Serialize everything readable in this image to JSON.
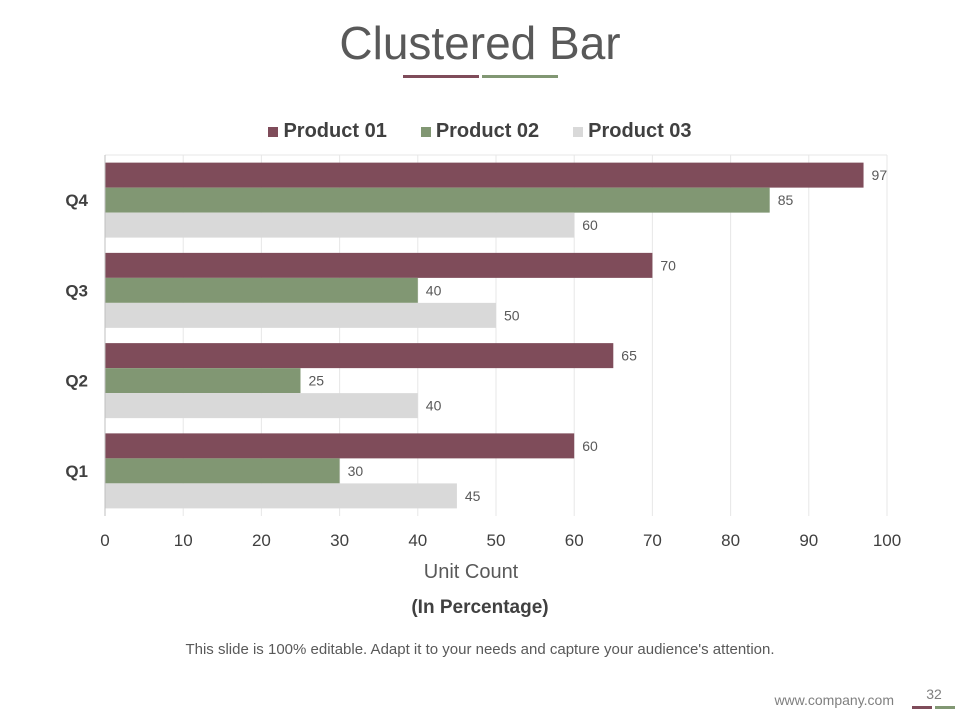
{
  "slide": {
    "title": "Clustered Bar",
    "caption": "(In Percentage)",
    "footnote": "This slide is 100% editable. Adapt it to your needs and capture your audience's attention.",
    "website": "www.company.com",
    "page_number": "32"
  },
  "colors": {
    "product1": "#7f4c5a",
    "product2": "#819773",
    "product3": "#d9d9d9",
    "accent_a": "#7f4c5a",
    "accent_b": "#819773"
  },
  "chart_data": {
    "type": "bar",
    "orientation": "horizontal",
    "title": "Clustered Bar",
    "categories": [
      "Q4",
      "Q3",
      "Q2",
      "Q1"
    ],
    "series": [
      {
        "name": "Product 01",
        "values": [
          97,
          70,
          65,
          60
        ]
      },
      {
        "name": "Product 02",
        "values": [
          85,
          40,
          25,
          30
        ]
      },
      {
        "name": "Product 03",
        "values": [
          60,
          50,
          40,
          45
        ]
      }
    ],
    "xlabel": "Unit Count",
    "ylabel": "",
    "xlim": [
      0,
      100
    ],
    "xticks": [
      0,
      10,
      20,
      30,
      40,
      50,
      60,
      70,
      80,
      90,
      100
    ],
    "grid": true,
    "legend": "top"
  }
}
